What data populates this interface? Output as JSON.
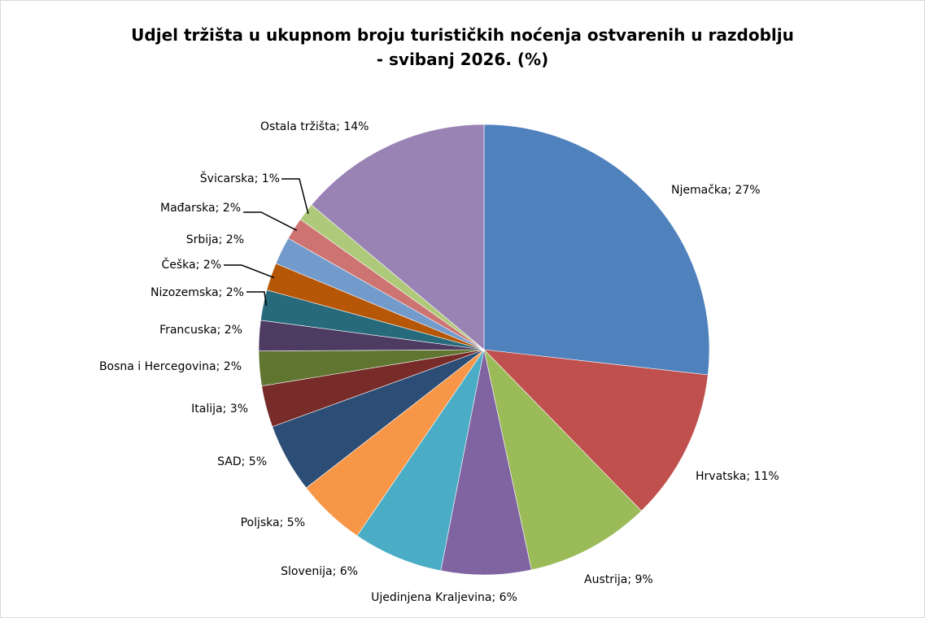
{
  "chart_data": {
    "type": "pie",
    "title": "Udjel tržišta u ukupnom broju turističkih noćenja ostvarenih u razdoblju - svibanj 2026. (%)",
    "title_lines": [
      "Udjel tržišta u ukupnom broju turističkih noćenja ostvarenih u razdoblju",
      "- svibanj 2026. (%)"
    ],
    "slices": [
      {
        "label": "Njemačka; 27%",
        "value": 27,
        "color": "#4f81bd"
      },
      {
        "label": "Hrvatska; 11%",
        "value": 11,
        "color": "#c0504d"
      },
      {
        "label": "Austrija; 9%",
        "value": 9,
        "color": "#9bbb59"
      },
      {
        "label": "Ujedinjena Kraljevina; 6%",
        "value": 6.5,
        "color": "#8064a2"
      },
      {
        "label": "Slovenija; 6%",
        "value": 6.5,
        "color": "#4bacc6"
      },
      {
        "label": "Poljska; 5%",
        "value": 5,
        "color": "#f79646"
      },
      {
        "label": "SAD; 5%",
        "value": 5,
        "color": "#2c4d75"
      },
      {
        "label": "Italija; 3%",
        "value": 3,
        "color": "#772c2a"
      },
      {
        "label": "Bosna i Hercegovina; 2%",
        "value": 2.5,
        "color": "#5f7530"
      },
      {
        "label": "Francuska; 2%",
        "value": 2.2,
        "color": "#4d3b62"
      },
      {
        "label": "Nizozemska; 2%",
        "value": 2.2,
        "color": "#276a7c"
      },
      {
        "label": "Češka; 2%",
        "value": 2,
        "color": "#b65708"
      },
      {
        "label": "Srbija; 2%",
        "value": 2,
        "color": "#729aca"
      },
      {
        "label": "Mađarska; 2%",
        "value": 1.6,
        "color": "#cd7371"
      },
      {
        "label": "Švicarska; 1%",
        "value": 1.3,
        "color": "#afc97a"
      },
      {
        "label": "Ostala tržišta; 14%",
        "value": 14,
        "color": "#9983b5"
      }
    ]
  }
}
